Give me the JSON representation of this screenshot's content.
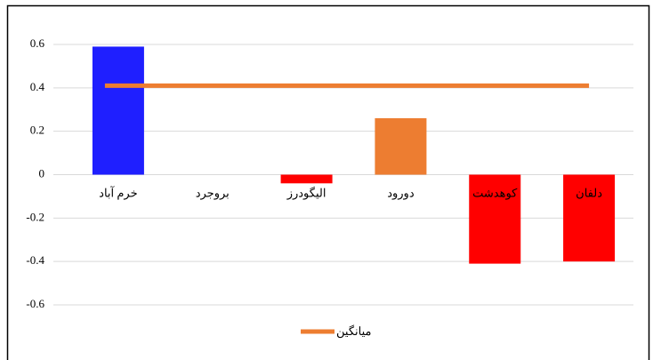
{
  "chart_data": {
    "type": "bar",
    "categories": [
      "خرم آباد",
      "بروجرد",
      "الیگودرز",
      "دورود",
      "کوهدشت",
      "دلفان"
    ],
    "values": [
      0.59,
      0,
      -0.04,
      0.26,
      -0.41,
      -0.4
    ],
    "colors": [
      "#1f1fff",
      "#1f1fff",
      "#ff0000",
      "#ed7d31",
      "#ff0000",
      "#ff0000"
    ],
    "series": [
      {
        "name": "میانگین",
        "type": "line",
        "color": "#ed7d31",
        "values": [
          0.41,
          0.41,
          0.41,
          0.41,
          0.41,
          0.41
        ]
      }
    ],
    "ylim": [
      -0.6,
      0.6
    ],
    "yticks": [
      -0.6,
      -0.4,
      -0.2,
      0,
      0.2,
      0.4,
      0.6
    ],
    "grid": true,
    "legend": "bottom"
  }
}
